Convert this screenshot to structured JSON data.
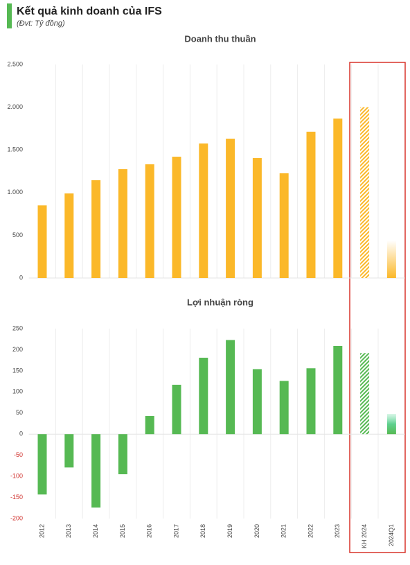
{
  "header": {
    "title": "Kết quả kinh doanh của IFS",
    "subtitle": "(Đvt: Tỷ đồng)"
  },
  "chart_data": [
    {
      "type": "bar",
      "title": "Doanh thu thuần",
      "values": [
        850,
        990,
        1145,
        1274,
        1331,
        1420,
        1575,
        1631,
        1404,
        1226,
        1713,
        1867,
        2000,
        440
      ],
      "bar_styles": [
        "solid",
        "solid",
        "solid",
        "solid",
        "solid",
        "solid",
        "solid",
        "solid",
        "solid",
        "solid",
        "solid",
        "solid",
        "hatched",
        "gradient"
      ],
      "color": "#fbb829",
      "ylim": [
        0,
        2500
      ],
      "yticks": [
        0,
        500,
        {
          "value": 1000,
          "label": "1.000"
        },
        {
          "value": 1500,
          "label": "1.500"
        },
        {
          "value": 2000,
          "label": "2.000"
        },
        {
          "value": 2500,
          "label": "2.500"
        }
      ]
    },
    {
      "type": "bar",
      "title": "Lợi nhuận ròng",
      "categories": [
        "2012",
        "2013",
        "2014",
        "2015",
        "2016",
        "2017",
        "2018",
        "2019",
        "2020",
        "2021",
        "2022",
        "2023",
        "KH 2024",
        "2024Q1"
      ],
      "values": [
        -143,
        -79,
        -174,
        -95,
        43,
        117,
        181,
        223,
        154,
        126,
        156,
        209,
        192,
        48
      ],
      "bar_styles": [
        "solid",
        "solid",
        "solid",
        "solid",
        "solid",
        "solid",
        "solid",
        "solid",
        "solid",
        "solid",
        "solid",
        "solid",
        "hatched",
        "gradient"
      ],
      "color": "#56b953",
      "negative_tick_color": "#d0312d",
      "ylim": [
        -200,
        250
      ],
      "yticks": [
        -200,
        -150,
        -100,
        -50,
        0,
        50,
        100,
        150,
        200,
        250
      ]
    }
  ]
}
